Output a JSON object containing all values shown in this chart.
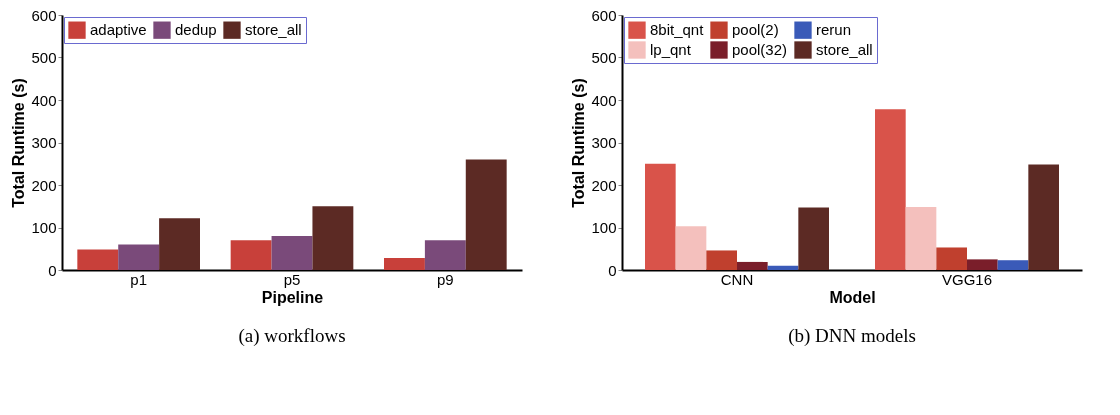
{
  "chart_data": [
    {
      "type": "bar",
      "title": "(a) workflows",
      "xlabel": "Pipeline",
      "ylabel": "Total Runtime (s)",
      "categories": [
        "p1",
        "p5",
        "p9"
      ],
      "ylim": [
        0,
        600
      ],
      "yticks": [
        0,
        100,
        200,
        300,
        400,
        500,
        600
      ],
      "grid": false,
      "legend": "top left",
      "series": [
        {
          "name": "adaptive",
          "color": "#c8403a",
          "values": [
            48,
            70,
            28
          ]
        },
        {
          "name": "dedup",
          "color": "#7a4a7a",
          "values": [
            60,
            80,
            70
          ]
        },
        {
          "name": "store_all",
          "color": "#5c2a24",
          "values": [
            122,
            150,
            260
          ]
        }
      ]
    },
    {
      "type": "bar",
      "title": "(b) DNN models",
      "xlabel": "Model",
      "ylabel": "Total Runtime (s)",
      "categories": [
        "CNN",
        "VGG16"
      ],
      "ylim": [
        0,
        600
      ],
      "yticks": [
        0,
        100,
        200,
        300,
        400,
        500,
        600
      ],
      "grid": false,
      "legend": "top left",
      "series": [
        {
          "name": "8bit_qnt",
          "color": "#d9534a",
          "values": [
            250,
            378
          ]
        },
        {
          "name": "lp_qnt",
          "color": "#f4c0bd",
          "values": [
            103,
            148
          ]
        },
        {
          "name": "pool(2)",
          "color": "#c0402e",
          "values": [
            46,
            53
          ]
        },
        {
          "name": "pool(32)",
          "color": "#7a1e2a",
          "values": [
            19,
            25
          ]
        },
        {
          "name": "rerun",
          "color": "#3a5ab8",
          "values": [
            10,
            23
          ]
        },
        {
          "name": "store_all",
          "color": "#5c2a24",
          "values": [
            147,
            248
          ]
        }
      ]
    }
  ]
}
